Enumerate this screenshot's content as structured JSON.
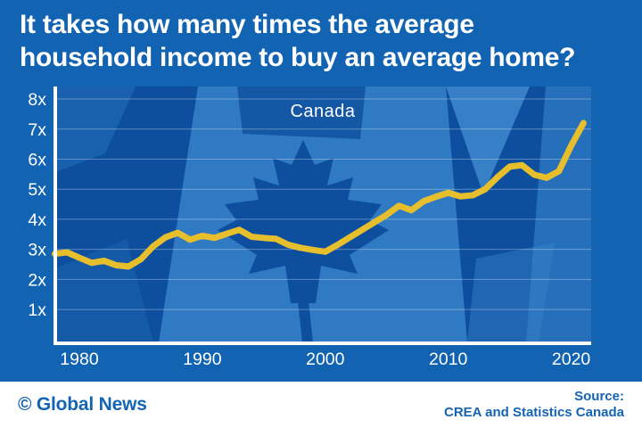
{
  "title": {
    "line1": "It takes how many times the average",
    "line2": "household income to buy an average home?"
  },
  "footer": {
    "brand": "© Global News",
    "source_label": "Source:",
    "source_value": "CREA and Statistics Canada"
  },
  "colors": {
    "background": "#1263b2",
    "plot_background": "#0d4f9e",
    "flag_light": "#2f7ac3",
    "flag_highlight": "#3f87cd",
    "line": "#e7bf2d",
    "axis": "#ffffff",
    "tick_text": "#ffffff",
    "footer_text": "#1464b4",
    "gridline": "rgba(255,255,255,0.32)"
  },
  "chart_data": {
    "type": "line",
    "title": "It takes how many times the average household income to buy an average home?",
    "series_label": "Canada",
    "xlabel": "",
    "ylabel": "",
    "grid": true,
    "legend_position": "top-center-inside",
    "x": [
      1978,
      1979,
      1980,
      1981,
      1982,
      1983,
      1984,
      1985,
      1986,
      1987,
      1988,
      1989,
      1990,
      1991,
      1992,
      1993,
      1994,
      1995,
      1996,
      1997,
      1998,
      1999,
      2000,
      2001,
      2002,
      2003,
      2004,
      2005,
      2006,
      2007,
      2008,
      2009,
      2010,
      2011,
      2012,
      2013,
      2014,
      2015,
      2016,
      2017,
      2018,
      2019,
      2020,
      2021
    ],
    "values": [
      2.85,
      2.9,
      2.72,
      2.55,
      2.62,
      2.47,
      2.43,
      2.67,
      3.1,
      3.4,
      3.55,
      3.32,
      3.45,
      3.38,
      3.52,
      3.65,
      3.42,
      3.38,
      3.35,
      3.15,
      3.05,
      2.98,
      2.92,
      3.15,
      3.4,
      3.65,
      3.9,
      4.15,
      4.45,
      4.3,
      4.6,
      4.75,
      4.88,
      4.76,
      4.8,
      5.0,
      5.4,
      5.75,
      5.8,
      5.48,
      5.38,
      5.6,
      6.45,
      7.2
    ],
    "y_ticks": [
      1,
      2,
      3,
      4,
      5,
      6,
      7,
      8
    ],
    "y_tick_labels": [
      "1x",
      "2x",
      "3x",
      "4x",
      "5x",
      "6x",
      "7x",
      "8x"
    ],
    "x_ticks": [
      1980,
      1990,
      2000,
      2010,
      2020
    ],
    "x_tick_labels": [
      "1980",
      "1990",
      "2000",
      "2010",
      "2020"
    ],
    "xlim": [
      1977.8,
      2021.6
    ],
    "ylim": [
      0,
      8.5
    ]
  }
}
